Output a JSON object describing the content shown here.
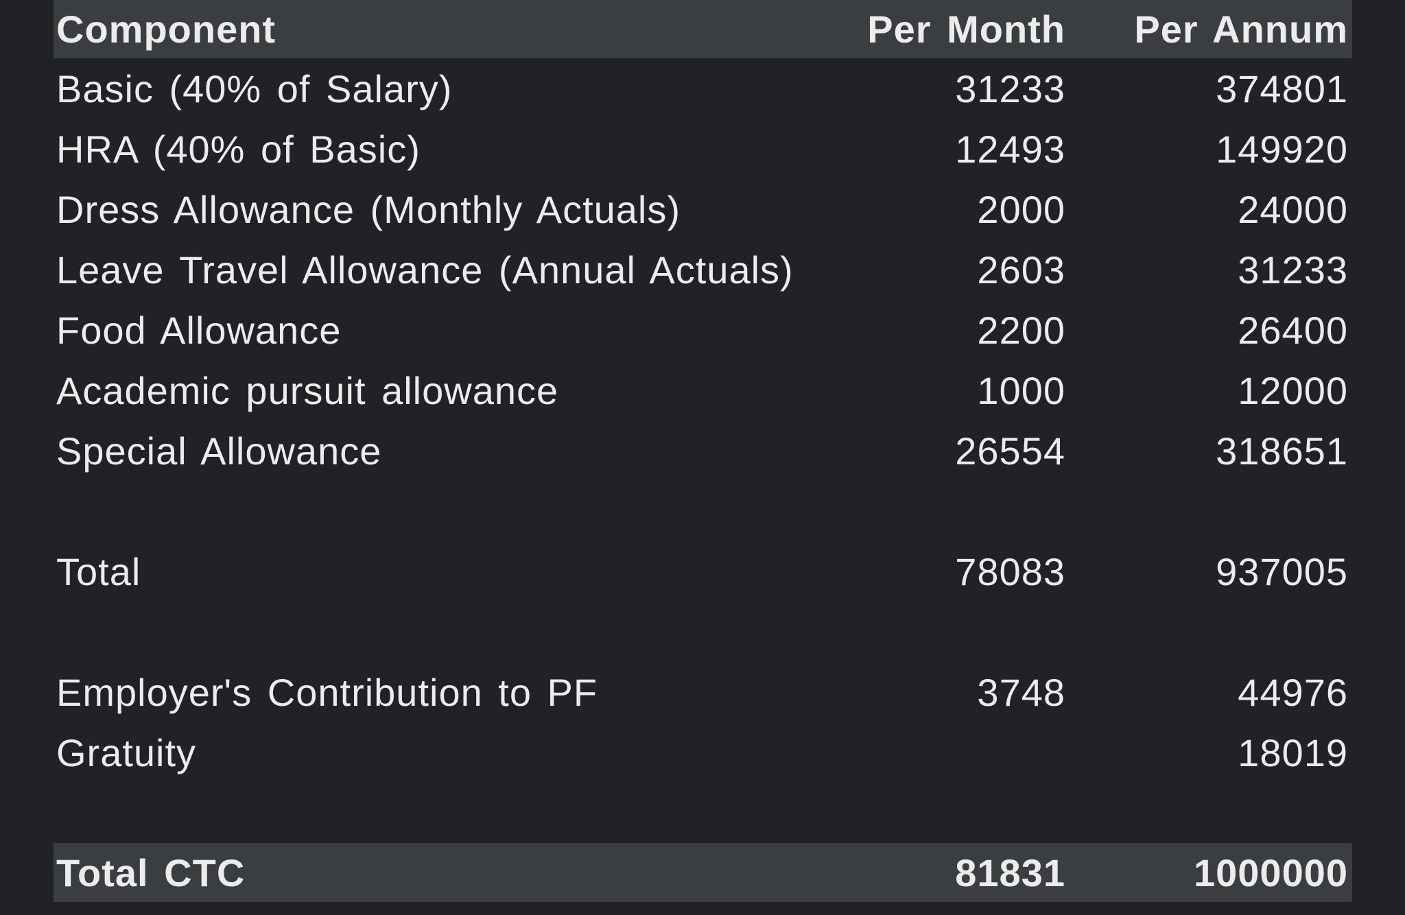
{
  "header": {
    "component": "Component",
    "per_month": "Per Month",
    "per_annum": "Per Annum"
  },
  "rows": [
    {
      "component": "Basic (40% of Salary)",
      "per_month": "31233",
      "per_annum": "374801"
    },
    {
      "component": "HRA (40% of Basic)",
      "per_month": "12493",
      "per_annum": "149920"
    },
    {
      "component": "Dress Allowance (Monthly Actuals)",
      "per_month": "2000",
      "per_annum": "24000"
    },
    {
      "component": "Leave Travel Allowance (Annual Actuals)",
      "per_month": "2603",
      "per_annum": "31233"
    },
    {
      "component": "Food Allowance",
      "per_month": "2200",
      "per_annum": "26400"
    },
    {
      "component": "Academic pursuit allowance",
      "per_month": "1000",
      "per_annum": "12000"
    },
    {
      "component": "Special Allowance",
      "per_month": "26554",
      "per_annum": "318651"
    }
  ],
  "total": {
    "component": "Total",
    "per_month": "78083",
    "per_annum": "937005"
  },
  "contributions": [
    {
      "component": "Employer's Contribution to PF",
      "per_month": "3748",
      "per_annum": "44976"
    },
    {
      "component": "Gratuity",
      "per_month": "",
      "per_annum": "18019"
    }
  ],
  "total_ctc": {
    "component": "Total CTC",
    "per_month": "81831",
    "per_annum": "1000000"
  },
  "colors": {
    "background": "#212226",
    "header_band": "#3a3e41",
    "text": "#ececec"
  }
}
